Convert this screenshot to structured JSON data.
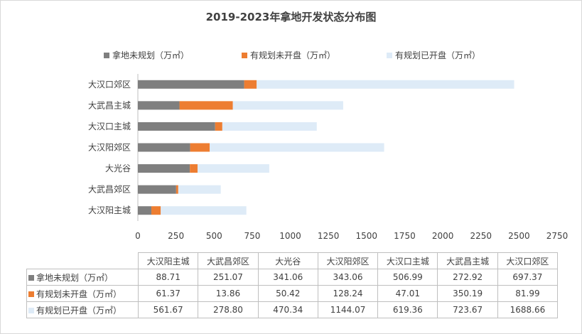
{
  "chart_data": {
    "type": "bar",
    "orientation": "horizontal",
    "stacked": true,
    "title": "2019-2023年拿地开发状态分布图",
    "categories": [
      "大汉阳主城",
      "大武昌郊区",
      "大光谷",
      "大汉阳郊区",
      "大汉口主城",
      "大武昌主城",
      "大汉口郊区"
    ],
    "series": [
      {
        "name": "拿地未规划（万㎡）",
        "color": "#7f7f7f",
        "values": [
          88.71,
          251.07,
          341.06,
          343.06,
          506.99,
          272.92,
          697.37
        ],
        "labels": [
          "88.71",
          "251.07",
          "341.06",
          "343.06",
          "506.99",
          "272.92",
          "697.37"
        ]
      },
      {
        "name": "有规划未开盘（万㎡）",
        "color": "#ed7d31",
        "values": [
          61.37,
          13.86,
          50.42,
          128.24,
          47.01,
          350.19,
          81.99
        ],
        "labels": [
          "61.37",
          "13.86",
          "50.42",
          "128.24",
          "47.01",
          "350.19",
          "81.99"
        ]
      },
      {
        "name": "有规划已开盘（万㎡）",
        "color": "#deebf7",
        "values": [
          561.67,
          278.8,
          470.34,
          1144.07,
          619.36,
          723.67,
          1688.66
        ],
        "labels": [
          "561.67",
          "278.80",
          "470.34",
          "1144.07",
          "619.36",
          "723.67",
          "1688.66"
        ]
      }
    ],
    "xlim": [
      0,
      2750
    ],
    "xticks": [
      "0",
      "250",
      "500",
      "750",
      "1000",
      "1250",
      "1500",
      "1750",
      "2000",
      "2250",
      "2500",
      "2750"
    ],
    "legend_position": "top",
    "grid": false,
    "data_table": true
  }
}
